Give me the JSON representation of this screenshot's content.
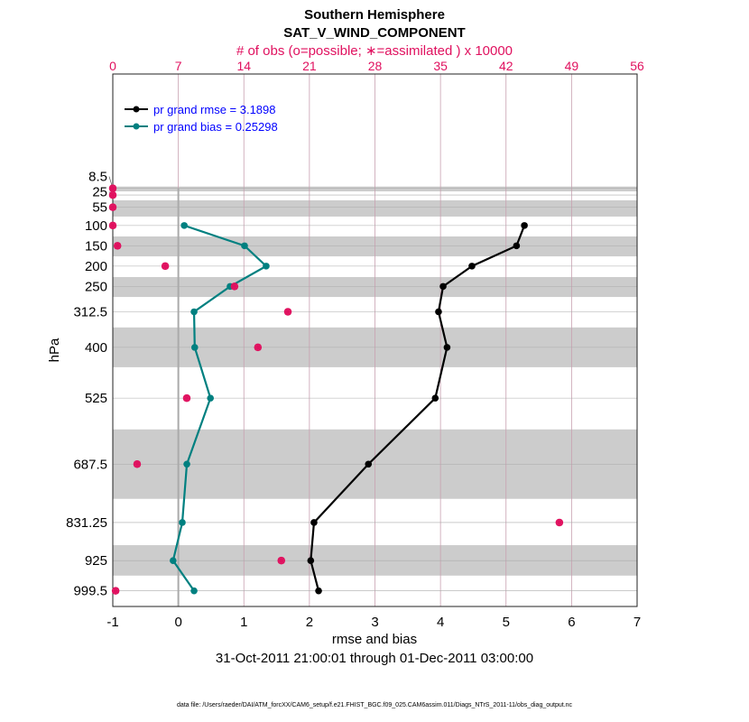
{
  "chart_data": {
    "type": "line",
    "title": "Southern Hemisphere",
    "subtitle": "SAT_V_WIND_COMPONENT",
    "top_axis_label": "# of obs (o=possible; ∗=assimilated ) x 10000",
    "xlabel": "rmse and bias",
    "ylabel": "hPa",
    "date_range": "31-Oct-2011 21:00:01 through 01-Dec-2011 03:00:00",
    "footer": "data file: /Users/raeder/DAI/ATM_forcXX/CAM6_setup/f.e21.FHIST_BGC.f09_025.CAM6assim.011/Diags_NTrS_2011-11/obs_diag_output.nc",
    "xlim": [
      -1,
      7
    ],
    "xticks": [
      "-1",
      "0",
      "1",
      "2",
      "3",
      "4",
      "5",
      "6",
      "7"
    ],
    "top_xlim": [
      0,
      56
    ],
    "top_xticks": [
      "0",
      "7",
      "14",
      "21",
      "28",
      "35",
      "42",
      "49",
      "56"
    ],
    "ylim": [
      -273,
      1038
    ],
    "levels": [
      8.5,
      25,
      55,
      100,
      150,
      200,
      250,
      312.5,
      400,
      525,
      687.5,
      831.25,
      925,
      999.5
    ],
    "level_labels": [
      "8.5",
      "25",
      "55",
      "100",
      "150",
      "200",
      "250",
      "312.5",
      "400",
      "525",
      "687.5",
      "831.25",
      "925",
      "999.5"
    ],
    "bands": [
      [
        4,
        16
      ],
      [
        38,
        78
      ],
      [
        127,
        176
      ],
      [
        227,
        276
      ],
      [
        351,
        449
      ],
      [
        602,
        773
      ],
      [
        887,
        962
      ]
    ],
    "legend": {
      "placement": "top-left",
      "entries": [
        "pr grand rmse = 3.1898",
        "pr grand bias = 0.25298"
      ]
    },
    "series": [
      {
        "name": "rmse",
        "color": "#000000",
        "levels": [
          100,
          150,
          200,
          250,
          312.5,
          400,
          525,
          687.5,
          831.25,
          925,
          999.5
        ],
        "values": [
          5.28,
          5.16,
          4.48,
          4.04,
          3.97,
          4.1,
          3.92,
          2.9,
          2.07,
          2.02,
          2.14
        ]
      },
      {
        "name": "bias",
        "color": "#008080",
        "levels": [
          100,
          150,
          200,
          250,
          312.5,
          400,
          525,
          687.5,
          831.25,
          925,
          999.5
        ],
        "values": [
          0.09,
          1.01,
          1.34,
          0.79,
          0.24,
          0.25,
          0.49,
          0.13,
          0.06,
          -0.08,
          0.24
        ]
      }
    ],
    "obs_count": {
      "color": "#e0115f",
      "levels": [
        8.5,
        25,
        55,
        100,
        150,
        200,
        250,
        312.5,
        400,
        525,
        687.5,
        831.25,
        925,
        999.5
      ],
      "possible": [
        0,
        0,
        0,
        0,
        0.5,
        5.6,
        13.0,
        18.7,
        15.5,
        7.9,
        2.6,
        47.7,
        18.0,
        0.3
      ],
      "assimilated": [
        0,
        0,
        0,
        0,
        0.5,
        5.6,
        13.0,
        18.7,
        15.5,
        7.9,
        2.6,
        47.7,
        18.0,
        0.3
      ]
    }
  }
}
